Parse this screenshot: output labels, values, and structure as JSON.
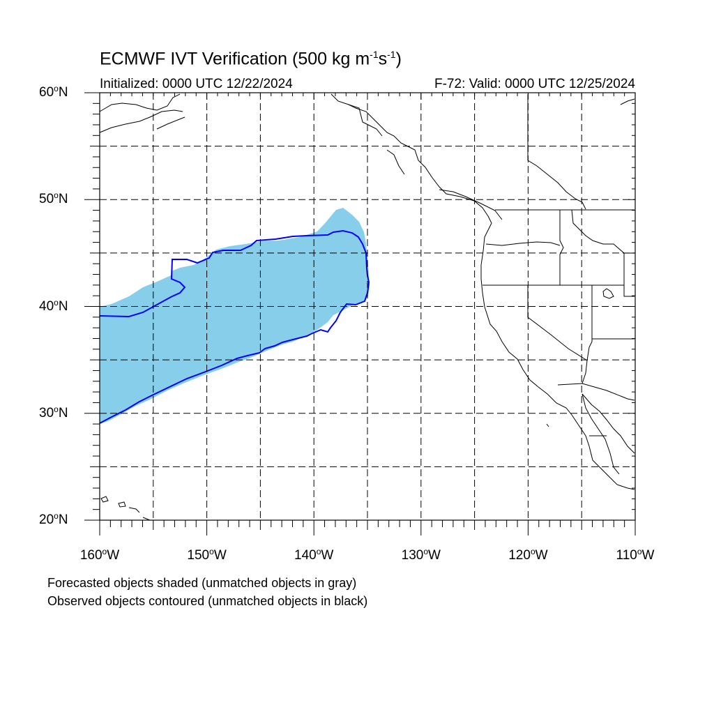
{
  "title": {
    "main": "ECMWF IVT Verification (500 kg m",
    "exp1": "-1",
    "mid": "s",
    "exp2": "-1",
    "end": ")"
  },
  "subtitle": {
    "initialized": "Initialized: 0000 UTC 12/22/2024",
    "valid": "F-72: Valid: 0000 UTC 12/25/2024"
  },
  "axes": {
    "lat_labels": [
      {
        "num": "60",
        "hemi": "N"
      },
      {
        "num": "50",
        "hemi": "N"
      },
      {
        "num": "40",
        "hemi": "N"
      },
      {
        "num": "30",
        "hemi": "N"
      },
      {
        "num": "20",
        "hemi": "N"
      }
    ],
    "lon_labels": [
      {
        "num": "160",
        "hemi": "W"
      },
      {
        "num": "150",
        "hemi": "W"
      },
      {
        "num": "140",
        "hemi": "W"
      },
      {
        "num": "130",
        "hemi": "W"
      },
      {
        "num": "120",
        "hemi": "W"
      },
      {
        "num": "110",
        "hemi": "W"
      }
    ],
    "degree_symbol": "o"
  },
  "captions": {
    "line1": "Forecasted objects shaded (unmatched objects in gray)",
    "line2": "Observed objects contoured (unmatched objects in black)"
  },
  "colors": {
    "forecast_fill": "#87ceeb",
    "observed_contour": "#0000ff",
    "coastline": "#000000",
    "grid": "#000000"
  }
}
